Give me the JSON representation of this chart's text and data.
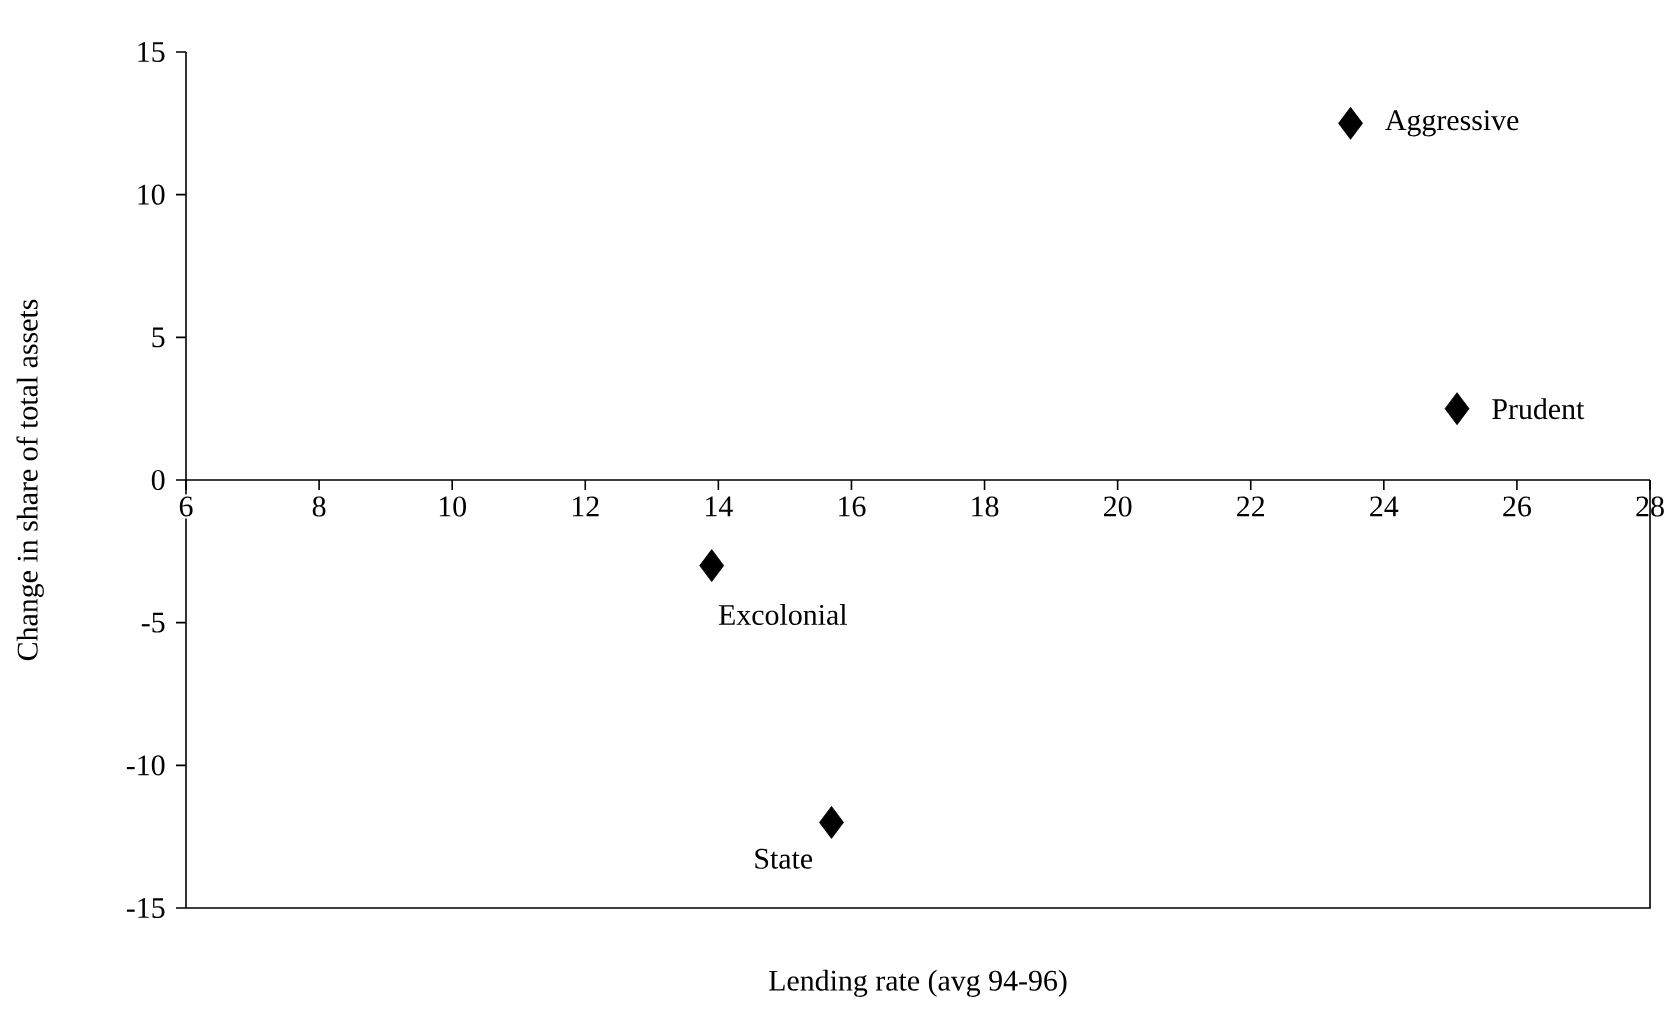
{
  "chart_data": {
    "type": "scatter",
    "xlabel": "Lending rate (avg 94-96)",
    "ylabel": "Change in share of total assets",
    "series": [
      {
        "color": "#000000",
        "x": [
          23.5,
          25.1,
          13.9,
          15.7
        ],
        "values": [
          12.5,
          2.5,
          -3,
          -12
        ]
      }
    ],
    "marker": "diamond",
    "xlim": [
      6,
      28
    ],
    "xticks": [
      6,
      8,
      10,
      12,
      14,
      16,
      18,
      20,
      22,
      24,
      26,
      28
    ],
    "ylim": [
      -15,
      15
    ],
    "yticks": [
      -15,
      -10,
      -5,
      0,
      5,
      10,
      15
    ],
    "annotations": [
      {
        "text": "Aggressive",
        "x": 23.5,
        "y": 12.5
      },
      {
        "text": "Prudent",
        "x": 25.1,
        "y": 2.5
      },
      {
        "text": "Excolonial",
        "x": 13.9,
        "y": -3
      },
      {
        "text": "State",
        "x": 15.7,
        "y": -12
      }
    ]
  }
}
